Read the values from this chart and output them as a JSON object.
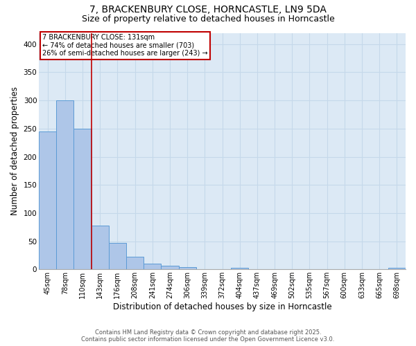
{
  "title_line1": "7, BRACKENBURY CLOSE, HORNCASTLE, LN9 5DA",
  "title_line2": "Size of property relative to detached houses in Horncastle",
  "xlabel": "Distribution of detached houses by size in Horncastle",
  "ylabel": "Number of detached properties",
  "categories": [
    "45sqm",
    "78sqm",
    "110sqm",
    "143sqm",
    "176sqm",
    "208sqm",
    "241sqm",
    "274sqm",
    "306sqm",
    "339sqm",
    "372sqm",
    "404sqm",
    "437sqm",
    "469sqm",
    "502sqm",
    "535sqm",
    "567sqm",
    "600sqm",
    "633sqm",
    "665sqm",
    "698sqm"
  ],
  "values": [
    245,
    300,
    250,
    78,
    47,
    22,
    10,
    7,
    4,
    0,
    0,
    3,
    0,
    0,
    0,
    0,
    0,
    0,
    0,
    0,
    3
  ],
  "bar_color": "#aec6e8",
  "bar_edge_color": "#5b9bd5",
  "background_color": "#dce9f5",
  "vline_x": 2.5,
  "vline_color": "#c00000",
  "annotation_text": "7 BRACKENBURY CLOSE: 131sqm\n← 74% of detached houses are smaller (703)\n26% of semi-detached houses are larger (243) →",
  "annotation_box_color": "#c00000",
  "footer_line1": "Contains HM Land Registry data © Crown copyright and database right 2025.",
  "footer_line2": "Contains public sector information licensed under the Open Government Licence v3.0.",
  "ylim": [
    0,
    420
  ],
  "yticks": [
    0,
    50,
    100,
    150,
    200,
    250,
    300,
    350,
    400
  ],
  "grid_color": "#c5d8ea",
  "title_fontsize": 10,
  "subtitle_fontsize": 9,
  "axis_label_fontsize": 8.5,
  "tick_fontsize": 7
}
